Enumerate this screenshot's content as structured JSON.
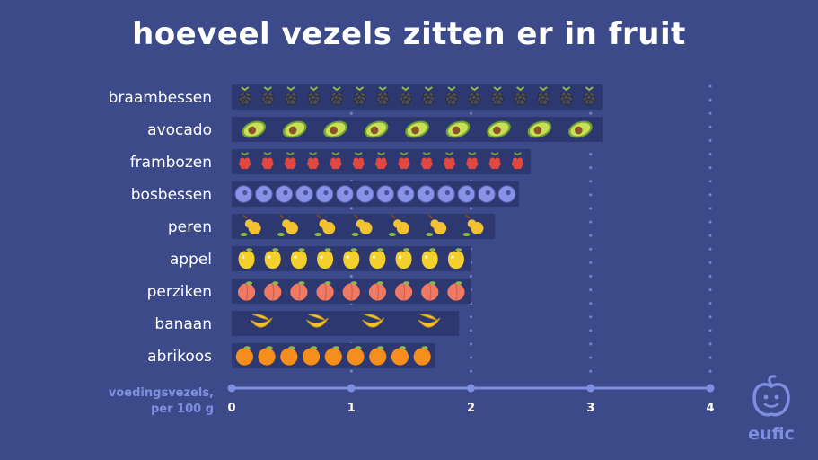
{
  "title": "hoeveel vezels zitten er in fruit",
  "logo_text": "eufic",
  "axis_note": [
    "voedingsvezels,",
    "per 100 g"
  ],
  "colors": {
    "background": "#3d4a8a",
    "bar": "#2e3870",
    "axis": "#7e8ee0"
  },
  "chart_data": {
    "type": "bar",
    "orientation": "horizontal",
    "title": "hoeveel vezels zitten er in fruit",
    "xlabel": "voedingsvezels, per 100 g",
    "ylabel": "",
    "xlim": [
      0,
      4
    ],
    "xticks": [
      "0",
      "1",
      "2",
      "3",
      "4"
    ],
    "categories": [
      "braambessen",
      "avocado",
      "frambozen",
      "bosbessen",
      "peren",
      "appel",
      "perziken",
      "banaan",
      "abrikoos"
    ],
    "values": [
      3.1,
      3.1,
      2.5,
      2.4,
      2.2,
      2.0,
      2.0,
      1.9,
      1.7
    ],
    "icons": [
      "blackberry-icon",
      "avocado-icon",
      "raspberry-icon",
      "blueberry-icon",
      "pear-icon",
      "apple-icon",
      "peach-icon",
      "banana-icon",
      "apricot-icon"
    ],
    "icon_counts": [
      16,
      9,
      13,
      14,
      7,
      9,
      9,
      4,
      9
    ],
    "grid": true
  }
}
